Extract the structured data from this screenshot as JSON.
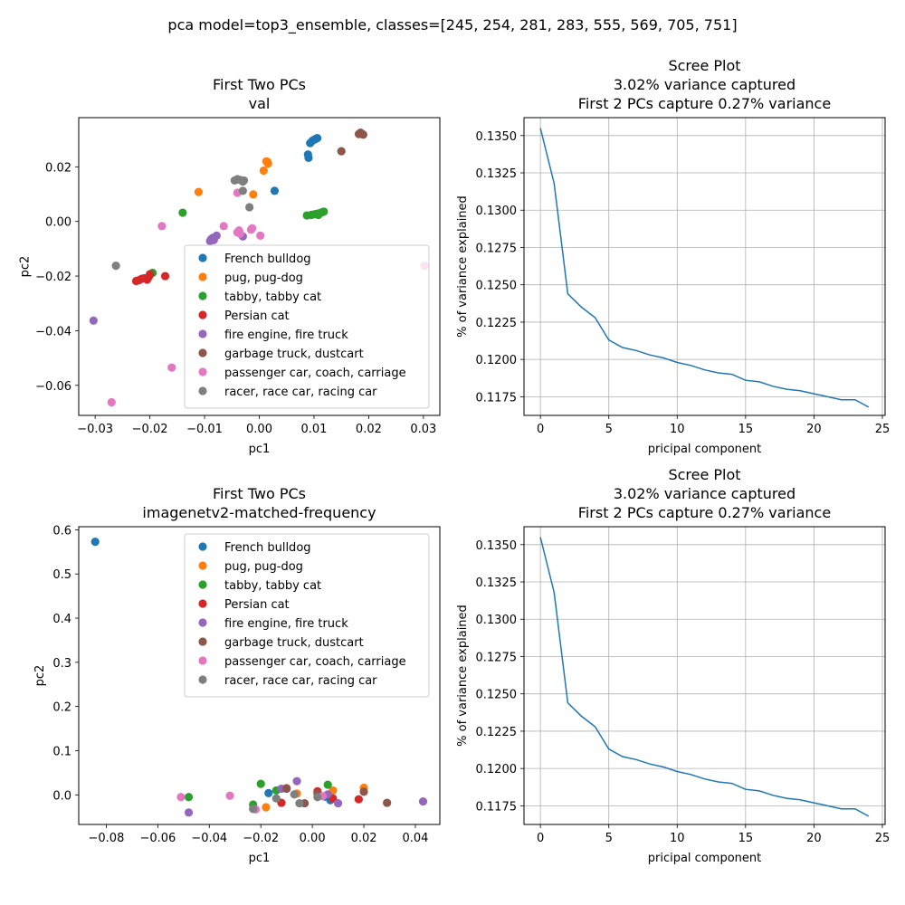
{
  "suptitle": "pca model=top3_ensemble, classes=[245, 254, 281, 283, 555, 569, 705, 751]",
  "colors": [
    "#1f77b4",
    "#ff7f0e",
    "#2ca02c",
    "#d62728",
    "#9467bd",
    "#8c564b",
    "#e377c2",
    "#7f7f7f"
  ],
  "chart_data": [
    {
      "type": "scatter",
      "title": [
        "First Two PCs",
        "val"
      ],
      "xlabel": "pc1",
      "ylabel": "pc2",
      "xlim": [
        -0.033,
        0.033
      ],
      "ylim": [
        -0.071,
        0.038
      ],
      "xticks": [
        -0.03,
        -0.02,
        -0.01,
        0.0,
        0.01,
        0.02,
        0.03
      ],
      "xticklabels": [
        "−0.03",
        "−0.02",
        "−0.01",
        "0.00",
        "0.01",
        "0.02",
        "0.03"
      ],
      "yticks": [
        -0.06,
        -0.04,
        -0.02,
        0.0,
        0.02
      ],
      "yticklabels": [
        "−0.06",
        "−0.04",
        "−0.02",
        "0.00",
        "0.02"
      ],
      "grid": false,
      "legend_position": "lower-right",
      "series": [
        {
          "name": "French bulldog",
          "points": [
            [
              0.0097,
              0.0295
            ],
            [
              0.0101,
              0.03
            ],
            [
              0.0104,
              0.0303
            ],
            [
              0.0106,
              0.0305
            ],
            [
              0.0093,
              0.0287
            ],
            [
              0.0089,
              0.0245
            ],
            [
              0.009,
              0.0233
            ],
            [
              0.0028,
              0.0112
            ]
          ]
        },
        {
          "name": "pug, pug-dog",
          "points": [
            [
              0.0015,
              0.0218
            ],
            [
              0.0016,
              0.0212
            ],
            [
              0.0013,
              0.022
            ],
            [
              0.0008,
              0.0186
            ],
            [
              -0.0011,
              0.0099
            ],
            [
              -0.0111,
              0.0108
            ]
          ]
        },
        {
          "name": "tabby, tabby cat",
          "points": [
            [
              0.0087,
              0.0022
            ],
            [
              0.0095,
              0.0024
            ],
            [
              0.01,
              0.0026
            ],
            [
              0.0105,
              0.0028
            ],
            [
              0.011,
              0.003
            ],
            [
              0.0115,
              0.0034
            ],
            [
              0.0118,
              0.0036
            ],
            [
              0.0108,
              0.0024
            ],
            [
              -0.014,
              0.0032
            ],
            [
              -0.0195,
              -0.0188
            ]
          ]
        },
        {
          "name": "Persian cat",
          "points": [
            [
              -0.0225,
              -0.0218
            ],
            [
              -0.022,
              -0.0215
            ],
            [
              -0.0215,
              -0.021
            ],
            [
              -0.021,
              -0.0208
            ],
            [
              -0.0205,
              -0.0213
            ],
            [
              -0.02,
              -0.0193
            ],
            [
              -0.0202,
              -0.0203
            ],
            [
              -0.0172,
              -0.02
            ]
          ]
        },
        {
          "name": "fire engine, fire truck",
          "points": [
            [
              -0.009,
              -0.0072
            ],
            [
              -0.0088,
              -0.0065
            ],
            [
              -0.0085,
              -0.006
            ],
            [
              -0.0083,
              -0.0068
            ],
            [
              -0.0078,
              -0.0052
            ],
            [
              -0.003,
              -0.0055
            ],
            [
              -0.0303,
              -0.0363
            ]
          ]
        },
        {
          "name": "garbage truck, dustcart",
          "points": [
            [
              0.0182,
              0.032
            ],
            [
              0.0185,
              0.0325
            ],
            [
              0.0187,
              0.0322
            ],
            [
              0.019,
              0.0318
            ],
            [
              0.015,
              0.0257
            ]
          ]
        },
        {
          "name": "passenger car, coach, carriage",
          "points": [
            [
              -0.004,
              -0.004
            ],
            [
              -0.0037,
              -0.0033
            ],
            [
              -0.0035,
              -0.0045
            ],
            [
              -0.0015,
              -0.003
            ],
            [
              -0.0013,
              -0.0025
            ],
            [
              0.0002,
              -0.0052
            ],
            [
              -0.0065,
              -0.0017
            ],
            [
              -0.0178,
              -0.0017
            ],
            [
              -0.004,
              0.0105
            ],
            [
              -0.016,
              -0.0535
            ],
            [
              -0.027,
              -0.0662
            ],
            [
              0.0302,
              -0.0162
            ]
          ]
        },
        {
          "name": "racer, race car, racing car",
          "points": [
            [
              -0.0045,
              0.015
            ],
            [
              -0.004,
              0.0155
            ],
            [
              -0.0035,
              0.0152
            ],
            [
              -0.003,
              0.0146
            ],
            [
              -0.0028,
              0.015
            ],
            [
              -0.003,
              0.0112
            ],
            [
              -0.0018,
              0.0052
            ],
            [
              -0.0262,
              -0.0162
            ]
          ]
        }
      ]
    },
    {
      "type": "line",
      "title": [
        "Scree Plot",
        "3.02% variance captured",
        "First 2 PCs capture 0.27% variance"
      ],
      "xlabel": "pricipal component",
      "ylabel": "% of variance explained",
      "xlim": [
        -1.2,
        25.2
      ],
      "ylim": [
        0.11625,
        0.1362
      ],
      "xticks": [
        0,
        5,
        10,
        15,
        20,
        25
      ],
      "xticklabels": [
        "0",
        "5",
        "10",
        "15",
        "20",
        "25"
      ],
      "yticks": [
        0.1175,
        0.12,
        0.1225,
        0.125,
        0.1275,
        0.13,
        0.1325,
        0.135
      ],
      "yticklabels": [
        "0.1175",
        "0.1200",
        "0.1225",
        "0.1250",
        "0.1275",
        "0.1300",
        "0.1325",
        "0.1350"
      ],
      "grid": true,
      "x": [
        0,
        1,
        2,
        3,
        4,
        5,
        6,
        7,
        8,
        9,
        10,
        11,
        12,
        13,
        14,
        15,
        16,
        17,
        18,
        19,
        20,
        21,
        22,
        23,
        24
      ],
      "y": [
        0.1355,
        0.1318,
        0.1244,
        0.1235,
        0.1228,
        0.1213,
        0.1208,
        0.1206,
        0.1203,
        0.1201,
        0.1198,
        0.1196,
        0.1193,
        0.1191,
        0.119,
        0.1186,
        0.1185,
        0.1182,
        0.118,
        0.1179,
        0.1177,
        0.1175,
        0.1173,
        0.1173,
        0.1168
      ]
    },
    {
      "type": "scatter",
      "title": [
        "First Two PCs",
        "imagenetv2-matched-frequency"
      ],
      "xlabel": "pc1",
      "ylabel": "pc2",
      "xlim": [
        -0.0907,
        0.0495
      ],
      "ylim": [
        -0.067,
        0.607
      ],
      "xticks": [
        -0.08,
        -0.06,
        -0.04,
        -0.02,
        0.0,
        0.02,
        0.04
      ],
      "xticklabels": [
        "−0.08",
        "−0.06",
        "−0.04",
        "−0.02",
        "0.00",
        "0.02",
        "0.04"
      ],
      "yticks": [
        0.0,
        0.1,
        0.2,
        0.3,
        0.4,
        0.5,
        0.6
      ],
      "yticklabels": [
        "0.0",
        "0.1",
        "0.2",
        "0.3",
        "0.4",
        "0.5",
        "0.6"
      ],
      "grid": false,
      "legend_position": "upper-right",
      "series": [
        {
          "name": "French bulldog",
          "points": [
            [
              -0.0843,
              0.573
            ],
            [
              -0.017,
              0.004
            ],
            [
              0.007,
              -0.012
            ],
            [
              0.005,
              -0.004
            ]
          ]
        },
        {
          "name": "pug, pug-dog",
          "points": [
            [
              -0.018,
              -0.028
            ],
            [
              0.02,
              0.016
            ],
            [
              0.008,
              0.01
            ],
            [
              -0.006,
              0.003
            ]
          ]
        },
        {
          "name": "tabby, tabby cat",
          "points": [
            [
              -0.048,
              -0.005
            ],
            [
              -0.02,
              0.025
            ],
            [
              -0.023,
              -0.022
            ],
            [
              0.006,
              0.023
            ],
            [
              -0.014,
              0.01
            ]
          ]
        },
        {
          "name": "Persian cat",
          "points": [
            [
              -0.012,
              -0.018
            ],
            [
              0.002,
              0.008
            ],
            [
              0.008,
              -0.008
            ],
            [
              0.018,
              -0.01
            ],
            [
              -0.01,
              0.015
            ]
          ]
        },
        {
          "name": "fire engine, fire truck",
          "points": [
            [
              -0.048,
              -0.04
            ],
            [
              -0.006,
              0.031
            ],
            [
              0.01,
              -0.019
            ],
            [
              0.043,
              -0.015
            ],
            [
              0.006,
              0.001
            ],
            [
              -0.012,
              0.014
            ]
          ]
        },
        {
          "name": "garbage truck, dustcart",
          "points": [
            [
              0.029,
              -0.018
            ],
            [
              -0.003,
              -0.019
            ],
            [
              0.02,
              0.007
            ],
            [
              -0.01,
              0.014
            ],
            [
              0.002,
              0.003
            ]
          ]
        },
        {
          "name": "passenger car, coach, carriage",
          "points": [
            [
              -0.051,
              -0.005
            ],
            [
              -0.032,
              -0.002
            ],
            [
              -0.022,
              -0.033
            ],
            [
              0.004,
              -0.003
            ]
          ]
        },
        {
          "name": "racer, race car, racing car",
          "points": [
            [
              -0.023,
              -0.032
            ],
            [
              -0.014,
              -0.008
            ],
            [
              -0.005,
              -0.019
            ],
            [
              0.002,
              -0.005
            ],
            [
              -0.007,
              0.001
            ]
          ]
        }
      ]
    },
    {
      "type": "line",
      "title": [
        "Scree Plot",
        "3.02% variance captured",
        "First 2 PCs capture 0.27% variance"
      ],
      "xlabel": "pricipal component",
      "ylabel": "% of variance explained",
      "xlim": [
        -1.2,
        25.2
      ],
      "ylim": [
        0.11625,
        0.1362
      ],
      "xticks": [
        0,
        5,
        10,
        15,
        20,
        25
      ],
      "xticklabels": [
        "0",
        "5",
        "10",
        "15",
        "20",
        "25"
      ],
      "yticks": [
        0.1175,
        0.12,
        0.1225,
        0.125,
        0.1275,
        0.13,
        0.1325,
        0.135
      ],
      "yticklabels": [
        "0.1175",
        "0.1200",
        "0.1225",
        "0.1250",
        "0.1275",
        "0.1300",
        "0.1325",
        "0.1350"
      ],
      "grid": true,
      "x": [
        0,
        1,
        2,
        3,
        4,
        5,
        6,
        7,
        8,
        9,
        10,
        11,
        12,
        13,
        14,
        15,
        16,
        17,
        18,
        19,
        20,
        21,
        22,
        23,
        24
      ],
      "y": [
        0.1355,
        0.1318,
        0.1244,
        0.1235,
        0.1228,
        0.1213,
        0.1208,
        0.1206,
        0.1203,
        0.1201,
        0.1198,
        0.1196,
        0.1193,
        0.1191,
        0.119,
        0.1186,
        0.1185,
        0.1182,
        0.118,
        0.1179,
        0.1177,
        0.1175,
        0.1173,
        0.1173,
        0.1168
      ]
    }
  ]
}
